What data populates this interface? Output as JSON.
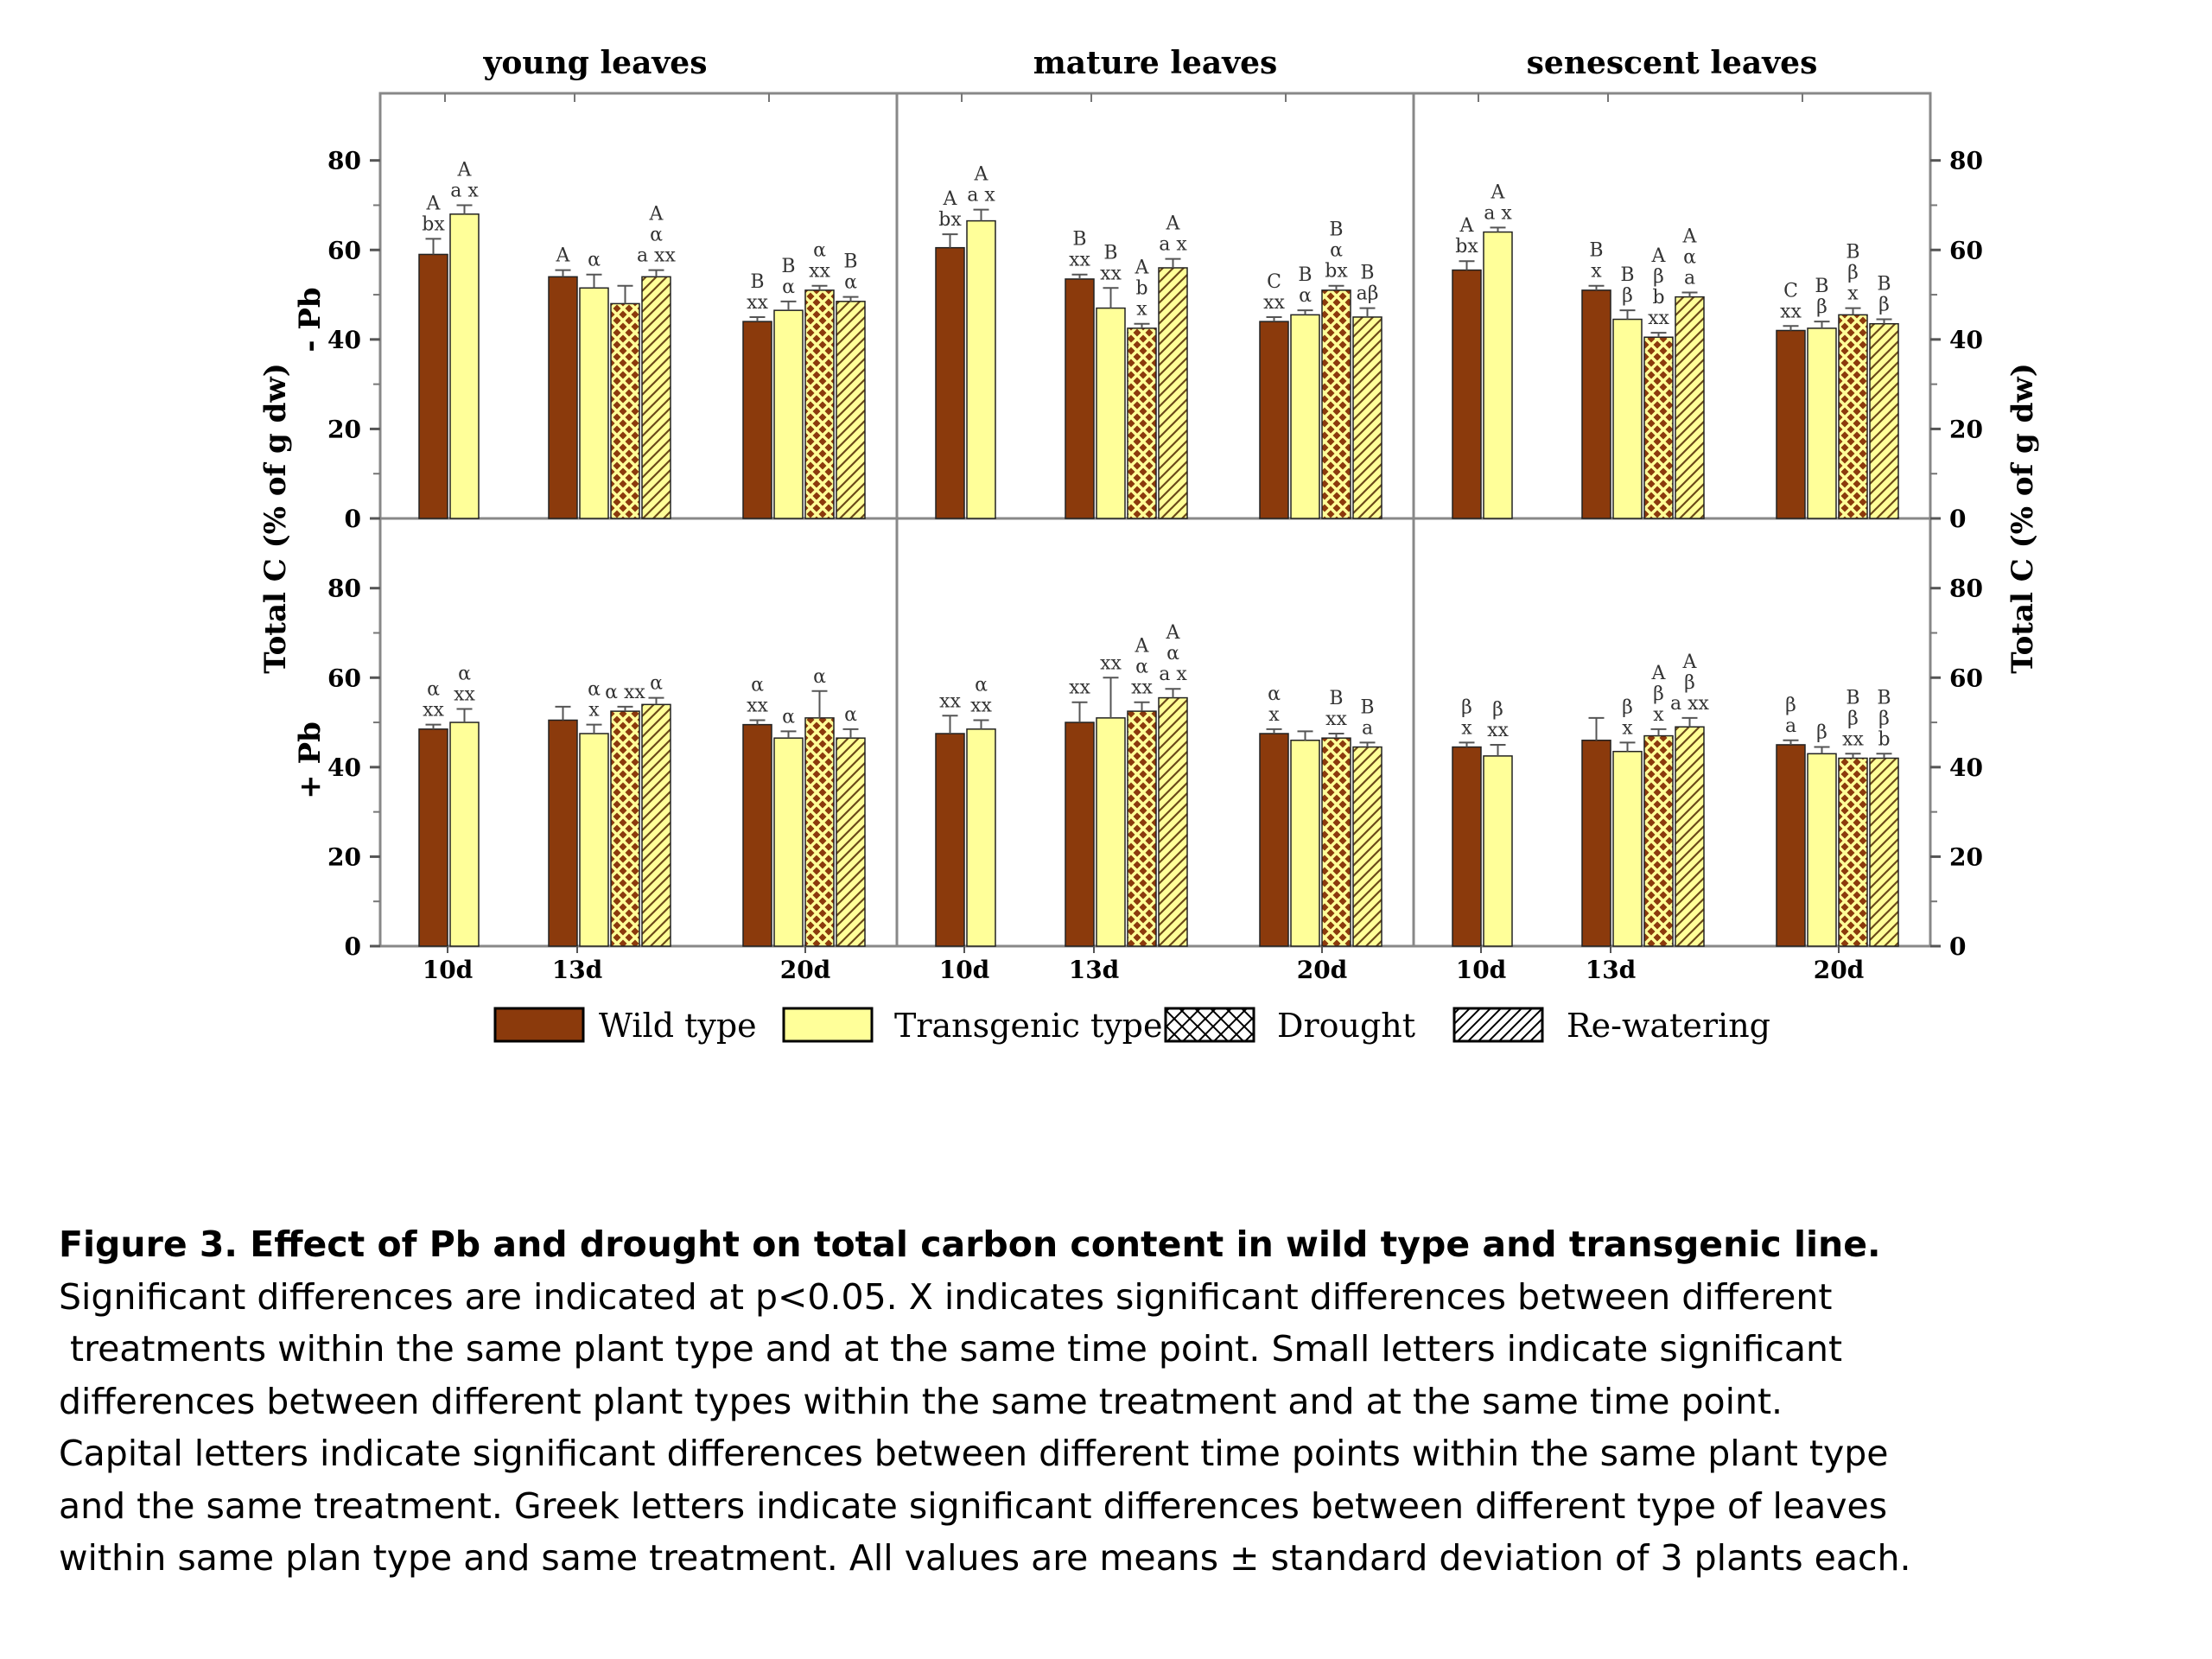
{
  "chart_data": {
    "type": "bar",
    "columns": [
      "young leaves",
      "mature leaves",
      "senescent  leaves"
    ],
    "rows": [
      "- Pb",
      "+ Pb"
    ],
    "ylabel": "Total C (% of g dw)",
    "ylabel_right": "Total C (% of g dw)",
    "ylim": [
      0,
      95
    ],
    "yticks": [
      "0",
      "20",
      "40",
      "60",
      "80"
    ],
    "time_points": [
      "10d",
      "13d",
      "20d"
    ],
    "series": [
      {
        "name": "Wild type",
        "color": "#8B3A0C",
        "pattern": "solid"
      },
      {
        "name": "Transgenic type",
        "color": "#FFFF99",
        "pattern": "solid"
      },
      {
        "name": "Drought",
        "color": "#8B3A0C",
        "pattern": "crosshatch"
      },
      {
        "name": "Re-watering",
        "color": "#FFFF99",
        "pattern": "diagonal"
      }
    ],
    "panels": [
      {
        "row": 0,
        "col": 0,
        "groups": [
          {
            "time": "10d",
            "bars": [
              {
                "series": 0,
                "value": 59,
                "err": 3.5,
                "label": [
                  "A",
                  "bx"
                ]
              },
              {
                "series": 1,
                "value": 68,
                "err": 2,
                "label": [
                  "A",
                  "a x"
                ]
              }
            ]
          },
          {
            "time": "13d",
            "bars": [
              {
                "series": 0,
                "value": 54,
                "err": 1.5,
                "label": [
                  "A"
                ]
              },
              {
                "series": 1,
                "value": 51.5,
                "err": 3,
                "label": [
                  "α"
                ]
              },
              {
                "series": 2,
                "value": 48,
                "err": 4,
                "label": []
              },
              {
                "series": 3,
                "value": 54,
                "err": 1.5,
                "label": [
                  "A",
                  "α",
                  "a xx"
                ]
              }
            ]
          },
          {
            "time": "20d",
            "bars": [
              {
                "series": 0,
                "value": 44,
                "err": 1,
                "label": [
                  "B",
                  "xx"
                ]
              },
              {
                "series": 1,
                "value": 46.5,
                "err": 2,
                "label": [
                  "B",
                  "α"
                ]
              },
              {
                "series": 2,
                "value": 51,
                "err": 1,
                "label": [
                  "α",
                  "xx"
                ]
              },
              {
                "series": 3,
                "value": 48.5,
                "err": 1,
                "label": [
                  "B",
                  "α"
                ]
              }
            ]
          }
        ]
      },
      {
        "row": 0,
        "col": 1,
        "groups": [
          {
            "time": "10d",
            "bars": [
              {
                "series": 0,
                "value": 60.5,
                "err": 3,
                "label": [
                  "A",
                  "bx"
                ]
              },
              {
                "series": 1,
                "value": 66.5,
                "err": 2.5,
                "label": [
                  "A",
                  "a x"
                ]
              }
            ]
          },
          {
            "time": "13d",
            "bars": [
              {
                "series": 0,
                "value": 53.5,
                "err": 1,
                "label": [
                  "B",
                  "xx"
                ]
              },
              {
                "series": 1,
                "value": 47,
                "err": 4.5,
                "label": [
                  "B",
                  "xx"
                ]
              },
              {
                "series": 2,
                "value": 42.5,
                "err": 1,
                "label": [
                  "A",
                  "b",
                  "x"
                ]
              },
              {
                "series": 3,
                "value": 56,
                "err": 2,
                "label": [
                  "A",
                  "a x"
                ]
              }
            ]
          },
          {
            "time": "20d",
            "bars": [
              {
                "series": 0,
                "value": 44,
                "err": 1,
                "label": [
                  "C",
                  "xx"
                ]
              },
              {
                "series": 1,
                "value": 45.5,
                "err": 1,
                "label": [
                  "B",
                  "α"
                ]
              },
              {
                "series": 2,
                "value": 51,
                "err": 1,
                "label": [
                  "B",
                  "α",
                  "bx"
                ]
              },
              {
                "series": 3,
                "value": 45,
                "err": 2,
                "label": [
                  "B",
                  "aβ"
                ]
              }
            ]
          }
        ]
      },
      {
        "row": 0,
        "col": 2,
        "groups": [
          {
            "time": "10d",
            "bars": [
              {
                "series": 0,
                "value": 55.5,
                "err": 2,
                "label": [
                  "A",
                  "bx"
                ]
              },
              {
                "series": 1,
                "value": 64,
                "err": 1,
                "label": [
                  "A",
                  "a x"
                ]
              }
            ]
          },
          {
            "time": "13d",
            "bars": [
              {
                "series": 0,
                "value": 51,
                "err": 1,
                "label": [
                  "B",
                  "x"
                ]
              },
              {
                "series": 1,
                "value": 44.5,
                "err": 2,
                "label": [
                  "B",
                  "β"
                ]
              },
              {
                "series": 2,
                "value": 40.5,
                "err": 1,
                "label": [
                  "A",
                  "β",
                  "b",
                  "xx"
                ]
              },
              {
                "series": 3,
                "value": 49.5,
                "err": 1,
                "label": [
                  "A",
                  "α",
                  "a"
                ]
              }
            ]
          },
          {
            "time": "20d",
            "bars": [
              {
                "series": 0,
                "value": 42,
                "err": 1,
                "label": [
                  "C",
                  "xx"
                ]
              },
              {
                "series": 1,
                "value": 42.5,
                "err": 1.5,
                "label": [
                  "B",
                  "β"
                ]
              },
              {
                "series": 2,
                "value": 45.5,
                "err": 1.5,
                "label": [
                  "B",
                  "β",
                  "x"
                ]
              },
              {
                "series": 3,
                "value": 43.5,
                "err": 1,
                "label": [
                  "B",
                  "β"
                ]
              }
            ]
          }
        ]
      },
      {
        "row": 1,
        "col": 0,
        "groups": [
          {
            "time": "10d",
            "bars": [
              {
                "series": 0,
                "value": 48.5,
                "err": 1,
                "label": [
                  "α",
                  "xx"
                ]
              },
              {
                "series": 1,
                "value": 50,
                "err": 3,
                "label": [
                  "α",
                  "xx"
                ]
              }
            ]
          },
          {
            "time": "13d",
            "bars": [
              {
                "series": 0,
                "value": 50.5,
                "err": 3,
                "label": []
              },
              {
                "series": 1,
                "value": 47.5,
                "err": 2,
                "label": [
                  "α",
                  "x"
                ]
              },
              {
                "series": 2,
                "value": 52.5,
                "err": 1,
                "label": [
                  "α xx"
                ]
              },
              {
                "series": 3,
                "value": 54,
                "err": 1.5,
                "label": [
                  "α"
                ]
              }
            ]
          },
          {
            "time": "20d",
            "bars": [
              {
                "series": 0,
                "value": 49.5,
                "err": 1,
                "label": [
                  "α",
                  "xx"
                ]
              },
              {
                "series": 1,
                "value": 46.5,
                "err": 1.5,
                "label": [
                  "α"
                ]
              },
              {
                "series": 2,
                "value": 51,
                "err": 6,
                "label": [
                  "α"
                ]
              },
              {
                "series": 3,
                "value": 46.5,
                "err": 2,
                "label": [
                  "α"
                ]
              }
            ]
          }
        ]
      },
      {
        "row": 1,
        "col": 1,
        "groups": [
          {
            "time": "10d",
            "bars": [
              {
                "series": 0,
                "value": 47.5,
                "err": 4,
                "label": [
                  "xx"
                ]
              },
              {
                "series": 1,
                "value": 48.5,
                "err": 2,
                "label": [
                  "α",
                  "xx"
                ]
              }
            ]
          },
          {
            "time": "13d",
            "bars": [
              {
                "series": 0,
                "value": 50,
                "err": 4.5,
                "label": [
                  "xx"
                ]
              },
              {
                "series": 1,
                "value": 51,
                "err": 9,
                "label": [
                  "xx"
                ]
              },
              {
                "series": 2,
                "value": 52.5,
                "err": 2,
                "label": [
                  "A",
                  "α",
                  "xx"
                ]
              },
              {
                "series": 3,
                "value": 55.5,
                "err": 2,
                "label": [
                  "A",
                  "α",
                  "a x"
                ]
              }
            ]
          },
          {
            "time": "20d",
            "bars": [
              {
                "series": 0,
                "value": 47.5,
                "err": 1,
                "label": [
                  "α",
                  "x"
                ]
              },
              {
                "series": 1,
                "value": 46,
                "err": 2,
                "label": []
              },
              {
                "series": 2,
                "value": 46.5,
                "err": 1,
                "label": [
                  "B",
                  "xx"
                ]
              },
              {
                "series": 3,
                "value": 44.5,
                "err": 1,
                "label": [
                  "B",
                  "a"
                ]
              }
            ]
          }
        ]
      },
      {
        "row": 1,
        "col": 2,
        "groups": [
          {
            "time": "10d",
            "bars": [
              {
                "series": 0,
                "value": 44.5,
                "err": 1,
                "label": [
                  "β",
                  "x"
                ]
              },
              {
                "series": 1,
                "value": 42.5,
                "err": 2.5,
                "label": [
                  "β",
                  "xx"
                ]
              }
            ]
          },
          {
            "time": "13d",
            "bars": [
              {
                "series": 0,
                "value": 46,
                "err": 5,
                "label": []
              },
              {
                "series": 1,
                "value": 43.5,
                "err": 2,
                "label": [
                  "β",
                  "x"
                ]
              },
              {
                "series": 2,
                "value": 47,
                "err": 1.5,
                "label": [
                  "A",
                  "β",
                  "x"
                ]
              },
              {
                "series": 3,
                "value": 49,
                "err": 2,
                "label": [
                  "A",
                  "β",
                  "a xx"
                ]
              }
            ]
          },
          {
            "time": "20d",
            "bars": [
              {
                "series": 0,
                "value": 45,
                "err": 1,
                "label": [
                  "β",
                  "a"
                ]
              },
              {
                "series": 1,
                "value": 43,
                "err": 1.5,
                "label": [
                  "β"
                ]
              },
              {
                "series": 2,
                "value": 42,
                "err": 1,
                "label": [
                  "B",
                  "β",
                  "xx"
                ]
              },
              {
                "series": 3,
                "value": 42,
                "err": 1,
                "label": [
                  "B",
                  "β",
                  "b"
                ]
              }
            ]
          }
        ]
      }
    ],
    "legend": {
      "position": "bottom"
    }
  },
  "caption": {
    "title": "Figure 3. Effect of Pb and drought on total carbon content in wild type and transgenic line.",
    "lines": [
      "Significant differences are indicated at p<0.05. X indicates significant differences between different",
      " treatments within the same plant type and at the same time point. Small letters indicate significant",
      "differences between different plant types within the same treatment and at the same time point.",
      "Capital letters indicate significant differences between different time points within the same plant type",
      "and the same treatment. Greek letters indicate significant differences between different type of leaves",
      "within same plan type and same treatment. All values are means ± standard deviation of 3 plants each."
    ]
  }
}
